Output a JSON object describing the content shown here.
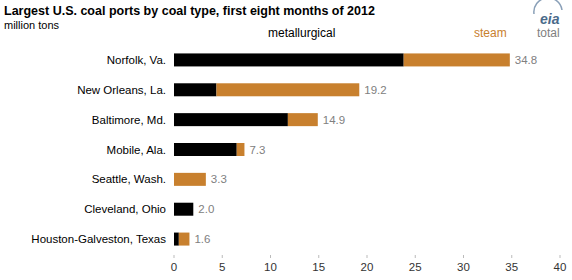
{
  "chart_data": {
    "type": "bar",
    "orientation": "horizontal",
    "stacked": true,
    "title": "Largest U.S. coal ports by coal type, first eight months of 2012",
    "subtitle": "million tons",
    "source_logo": "eia",
    "categories": [
      "Norfolk, Va.",
      "New Orleans, La.",
      "Baltimore, Md.",
      "Mobile, Ala.",
      "Seattle, Wash.",
      "Cleveland, Ohio",
      "Houston-Galveston, Texas"
    ],
    "series": [
      {
        "name": "metallurgical",
        "color": "#000000",
        "values": [
          23.8,
          4.4,
          11.8,
          6.5,
          0,
          2.0,
          0.5
        ]
      },
      {
        "name": "steam",
        "color": "#c8802e",
        "values": [
          11.0,
          14.8,
          3.1,
          0.8,
          3.3,
          0,
          1.1
        ]
      }
    ],
    "totals": {
      "name": "total",
      "color": "#808080",
      "values": [
        34.8,
        19.2,
        14.9,
        7.3,
        3.3,
        2.0,
        1.6
      ],
      "value_labels": [
        "34.8",
        "19.2",
        "14.9",
        "7.3",
        "3.3",
        "2.0",
        "1.6"
      ]
    },
    "xlim": [
      0,
      40
    ],
    "xticks": [
      0,
      5,
      10,
      15,
      20,
      25,
      30,
      35,
      40
    ],
    "grid": false,
    "legend": "top"
  }
}
